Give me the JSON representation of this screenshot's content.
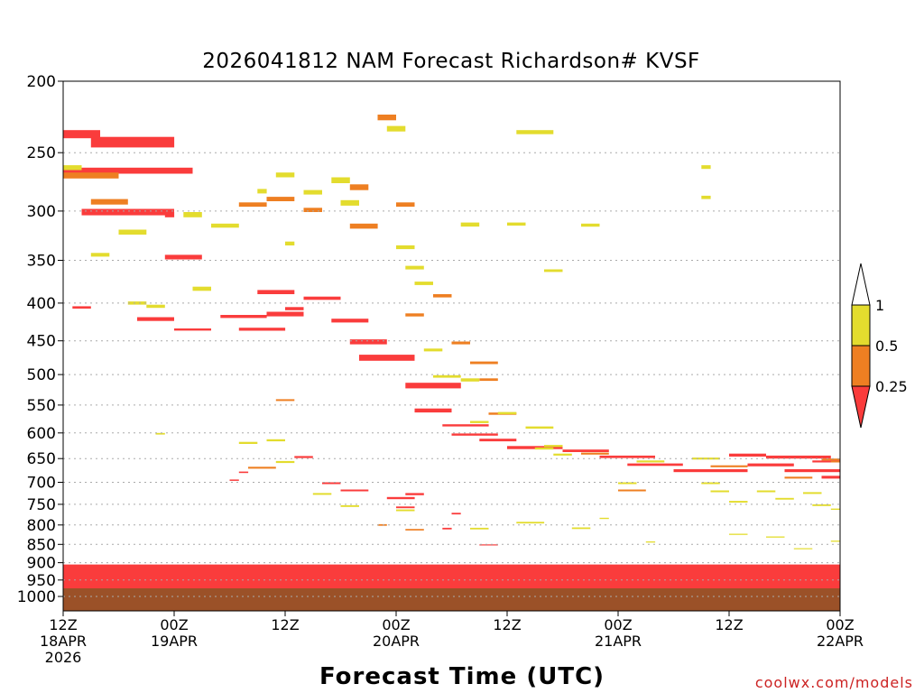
{
  "chart_data": {
    "type": "heatmap",
    "title": "2026041812 NAM Forecast Richardson# KVSF",
    "xlabel": "Forecast Time (UTC)",
    "ylabel": "",
    "x_unit": "forecast hours from 2026-04-18 12Z",
    "xlim": [
      0,
      84
    ],
    "y_unit": "pressure (hPa)",
    "ylim": [
      1000,
      200
    ],
    "y_ticks": [
      "200",
      "250",
      "300",
      "350",
      "400",
      "450",
      "500",
      "550",
      "600",
      "650",
      "700",
      "750",
      "800",
      "850",
      "900",
      "950",
      "1000"
    ],
    "x_ticks": [
      {
        "hour": 0,
        "line1": "12Z",
        "line2": "18APR",
        "line3": "2026"
      },
      {
        "hour": 12,
        "line1": "00Z",
        "line2": "19APR",
        "line3": ""
      },
      {
        "hour": 24,
        "line1": "12Z",
        "line2": "",
        "line3": ""
      },
      {
        "hour": 36,
        "line1": "00Z",
        "line2": "20APR",
        "line3": ""
      },
      {
        "hour": 48,
        "line1": "12Z",
        "line2": "",
        "line3": ""
      },
      {
        "hour": 60,
        "line1": "00Z",
        "line2": "21APR",
        "line3": ""
      },
      {
        "hour": 72,
        "line1": "12Z",
        "line2": "",
        "line3": ""
      },
      {
        "hour": 84,
        "line1": "00Z",
        "line2": "22APR",
        "line3": ""
      }
    ],
    "legend": {
      "placement": "right",
      "labels": [
        "1",
        "0.5",
        "0.25"
      ],
      "bins": [
        {
          "range": "0.5 to 1",
          "color": "#e3dc2e"
        },
        {
          "range": "0.25 to 0.5",
          "color": "#ee7f22"
        },
        {
          "range": "< 0.25",
          "color": "#fa3c3c"
        }
      ],
      "above_color": "#ffffff"
    },
    "surface_color": "#9b5128",
    "surface_pressure": 975,
    "categories": {
      "1": "#e3dc2e",
      "2": "#ee7f22",
      "3": "#fa3c3c"
    },
    "series": [
      {
        "name": "Ri < 0.25",
        "category": 3,
        "cells": [
          [
            0,
            233,
            4,
            6
          ],
          [
            3,
            238,
            9,
            8
          ],
          [
            0,
            262,
            14,
            5
          ],
          [
            2,
            298,
            10,
            6
          ],
          [
            11,
            301,
            1,
            5
          ],
          [
            11,
            344,
            4,
            5
          ],
          [
            1,
            404,
            2,
            3
          ],
          [
            8,
            418,
            4,
            5
          ],
          [
            12,
            433,
            4,
            3
          ],
          [
            17,
            415,
            5,
            4
          ],
          [
            19,
            432,
            5,
            4
          ],
          [
            21,
            384,
            4,
            5
          ],
          [
            22,
            411,
            4,
            6
          ],
          [
            24,
            405,
            2,
            4
          ],
          [
            26,
            392,
            4,
            4
          ],
          [
            29,
            420,
            4,
            5
          ],
          [
            31,
            448,
            4,
            7
          ],
          [
            32,
            470,
            6,
            9
          ],
          [
            37,
            513,
            6,
            9
          ],
          [
            38,
            556,
            4,
            7
          ],
          [
            41,
            584,
            5,
            4
          ],
          [
            42,
            601,
            5,
            4
          ],
          [
            45,
            611,
            4,
            5
          ],
          [
            48,
            625,
            6,
            6
          ],
          [
            54,
            632,
            5,
            5
          ],
          [
            58,
            644,
            6,
            5
          ],
          [
            61,
            660,
            6,
            5
          ],
          [
            66,
            672,
            8,
            6
          ],
          [
            72,
            640,
            4,
            6
          ],
          [
            74,
            660,
            5,
            6
          ],
          [
            76,
            644,
            7,
            6
          ],
          [
            78,
            672,
            8,
            6
          ],
          [
            81,
            654,
            3,
            4
          ],
          [
            82,
            686,
            2,
            6
          ],
          [
            18,
            694,
            1,
            3
          ],
          [
            19,
            677,
            1,
            3
          ],
          [
            25,
            645,
            2,
            4
          ],
          [
            28,
            700,
            2,
            4
          ],
          [
            30,
            716,
            3,
            4
          ],
          [
            35,
            733,
            3,
            5
          ],
          [
            37,
            724,
            2,
            5
          ],
          [
            36,
            755,
            2,
            4
          ],
          [
            42,
            770,
            1,
            4
          ],
          [
            41,
            807,
            1,
            4
          ],
          [
            45,
            850,
            2,
            3
          ],
          [
            18,
            908,
            3,
            4
          ],
          [
            21,
            942,
            2,
            3
          ],
          [
            27,
            940,
            2,
            4
          ],
          [
            31,
            955,
            2,
            4
          ],
          [
            32,
            975,
            2,
            3
          ],
          [
            13,
            970,
            2,
            3
          ]
        ]
      },
      {
        "name": "0.25 <= Ri < 0.5",
        "category": 2,
        "cells": [
          [
            0,
            266,
            6,
            5
          ],
          [
            3,
            289,
            4,
            5
          ],
          [
            19,
            292,
            3,
            4
          ],
          [
            22,
            287,
            3,
            4
          ],
          [
            26,
            297,
            2,
            4
          ],
          [
            31,
            276,
            2,
            5
          ],
          [
            31,
            312,
            3,
            5
          ],
          [
            34,
            222,
            2,
            4
          ],
          [
            36,
            292,
            2,
            4
          ],
          [
            37,
            413,
            2,
            4
          ],
          [
            40,
            389,
            2,
            4
          ],
          [
            42,
            451,
            2,
            4
          ],
          [
            44,
            480,
            3,
            4
          ],
          [
            45,
            506,
            2,
            4
          ],
          [
            46,
            563,
            3,
            4
          ],
          [
            56,
            638,
            3,
            4
          ],
          [
            60,
            716,
            3,
            4
          ],
          [
            70,
            664,
            4,
            4
          ],
          [
            78,
            688,
            3,
            4
          ],
          [
            82,
            650,
            2,
            4
          ],
          [
            83,
            655,
            1,
            3
          ],
          [
            23,
            540,
            2,
            3
          ],
          [
            20,
            667,
            3,
            4
          ],
          [
            34,
            798,
            1,
            4
          ],
          [
            37,
            810,
            2,
            4
          ],
          [
            27,
            960,
            1,
            3
          ]
        ]
      },
      {
        "name": "0.5 <= Ri < 1",
        "category": 1,
        "cells": [
          [
            0,
            260,
            2,
            4
          ],
          [
            3,
            342,
            2,
            4
          ],
          [
            6,
            318,
            3,
            5
          ],
          [
            7,
            398,
            2,
            4
          ],
          [
            9,
            402,
            2,
            4
          ],
          [
            13,
            301,
            2,
            5
          ],
          [
            14,
            380,
            2,
            5
          ],
          [
            16,
            312,
            3,
            4
          ],
          [
            21,
            280,
            1,
            4
          ],
          [
            23,
            266,
            2,
            4
          ],
          [
            24,
            330,
            1,
            4
          ],
          [
            26,
            281,
            2,
            4
          ],
          [
            29,
            270,
            2,
            5
          ],
          [
            30,
            290,
            2,
            5
          ],
          [
            35,
            230,
            2,
            4
          ],
          [
            36,
            334,
            2,
            4
          ],
          [
            37,
            356,
            2,
            4
          ],
          [
            38,
            374,
            2,
            4
          ],
          [
            39,
            461,
            2,
            4
          ],
          [
            40,
            501,
            3,
            4
          ],
          [
            43,
            506,
            2,
            5
          ],
          [
            44,
            578,
            2,
            4
          ],
          [
            47,
            562,
            2,
            4
          ],
          [
            50,
            588,
            3,
            4
          ],
          [
            51,
            628,
            2,
            4
          ],
          [
            52,
            623,
            2,
            4
          ],
          [
            53,
            640,
            2,
            4
          ],
          [
            60,
            700,
            2,
            4
          ],
          [
            62,
            654,
            3,
            4
          ],
          [
            68,
            648,
            3,
            4
          ],
          [
            69,
            700,
            2,
            4
          ],
          [
            70,
            718,
            2,
            4
          ],
          [
            72,
            742,
            2,
            4
          ],
          [
            75,
            718,
            2,
            4
          ],
          [
            77,
            735,
            2,
            4
          ],
          [
            80,
            722,
            2,
            4
          ],
          [
            81,
            750,
            2,
            4
          ],
          [
            83,
            760,
            1,
            3
          ],
          [
            84,
            765,
            1,
            3
          ],
          [
            49,
            233,
            4,
            3
          ],
          [
            69,
            260,
            1,
            3
          ],
          [
            69,
            286,
            1,
            3
          ],
          [
            43,
            311,
            2,
            4
          ],
          [
            48,
            311,
            2,
            3
          ],
          [
            56,
            312,
            2,
            3
          ],
          [
            52,
            360,
            2,
            3
          ],
          [
            10,
            600,
            1,
            3
          ],
          [
            19,
            617,
            2,
            4
          ],
          [
            22,
            612,
            2,
            4
          ],
          [
            23,
            655,
            2,
            4
          ],
          [
            27,
            724,
            2,
            4
          ],
          [
            30,
            752,
            2,
            4
          ],
          [
            36,
            762,
            2,
            4
          ],
          [
            44,
            807,
            2,
            4
          ],
          [
            49,
            792,
            3,
            4
          ],
          [
            55,
            806,
            2,
            4
          ],
          [
            58,
            782,
            1,
            3
          ],
          [
            63,
            842,
            1,
            3
          ],
          [
            72,
            822,
            2,
            3
          ],
          [
            76,
            829,
            2,
            3
          ],
          [
            79,
            860,
            2,
            3
          ],
          [
            83,
            840,
            1,
            3
          ]
        ]
      }
    ]
  },
  "credit": "coolwx.com/models"
}
